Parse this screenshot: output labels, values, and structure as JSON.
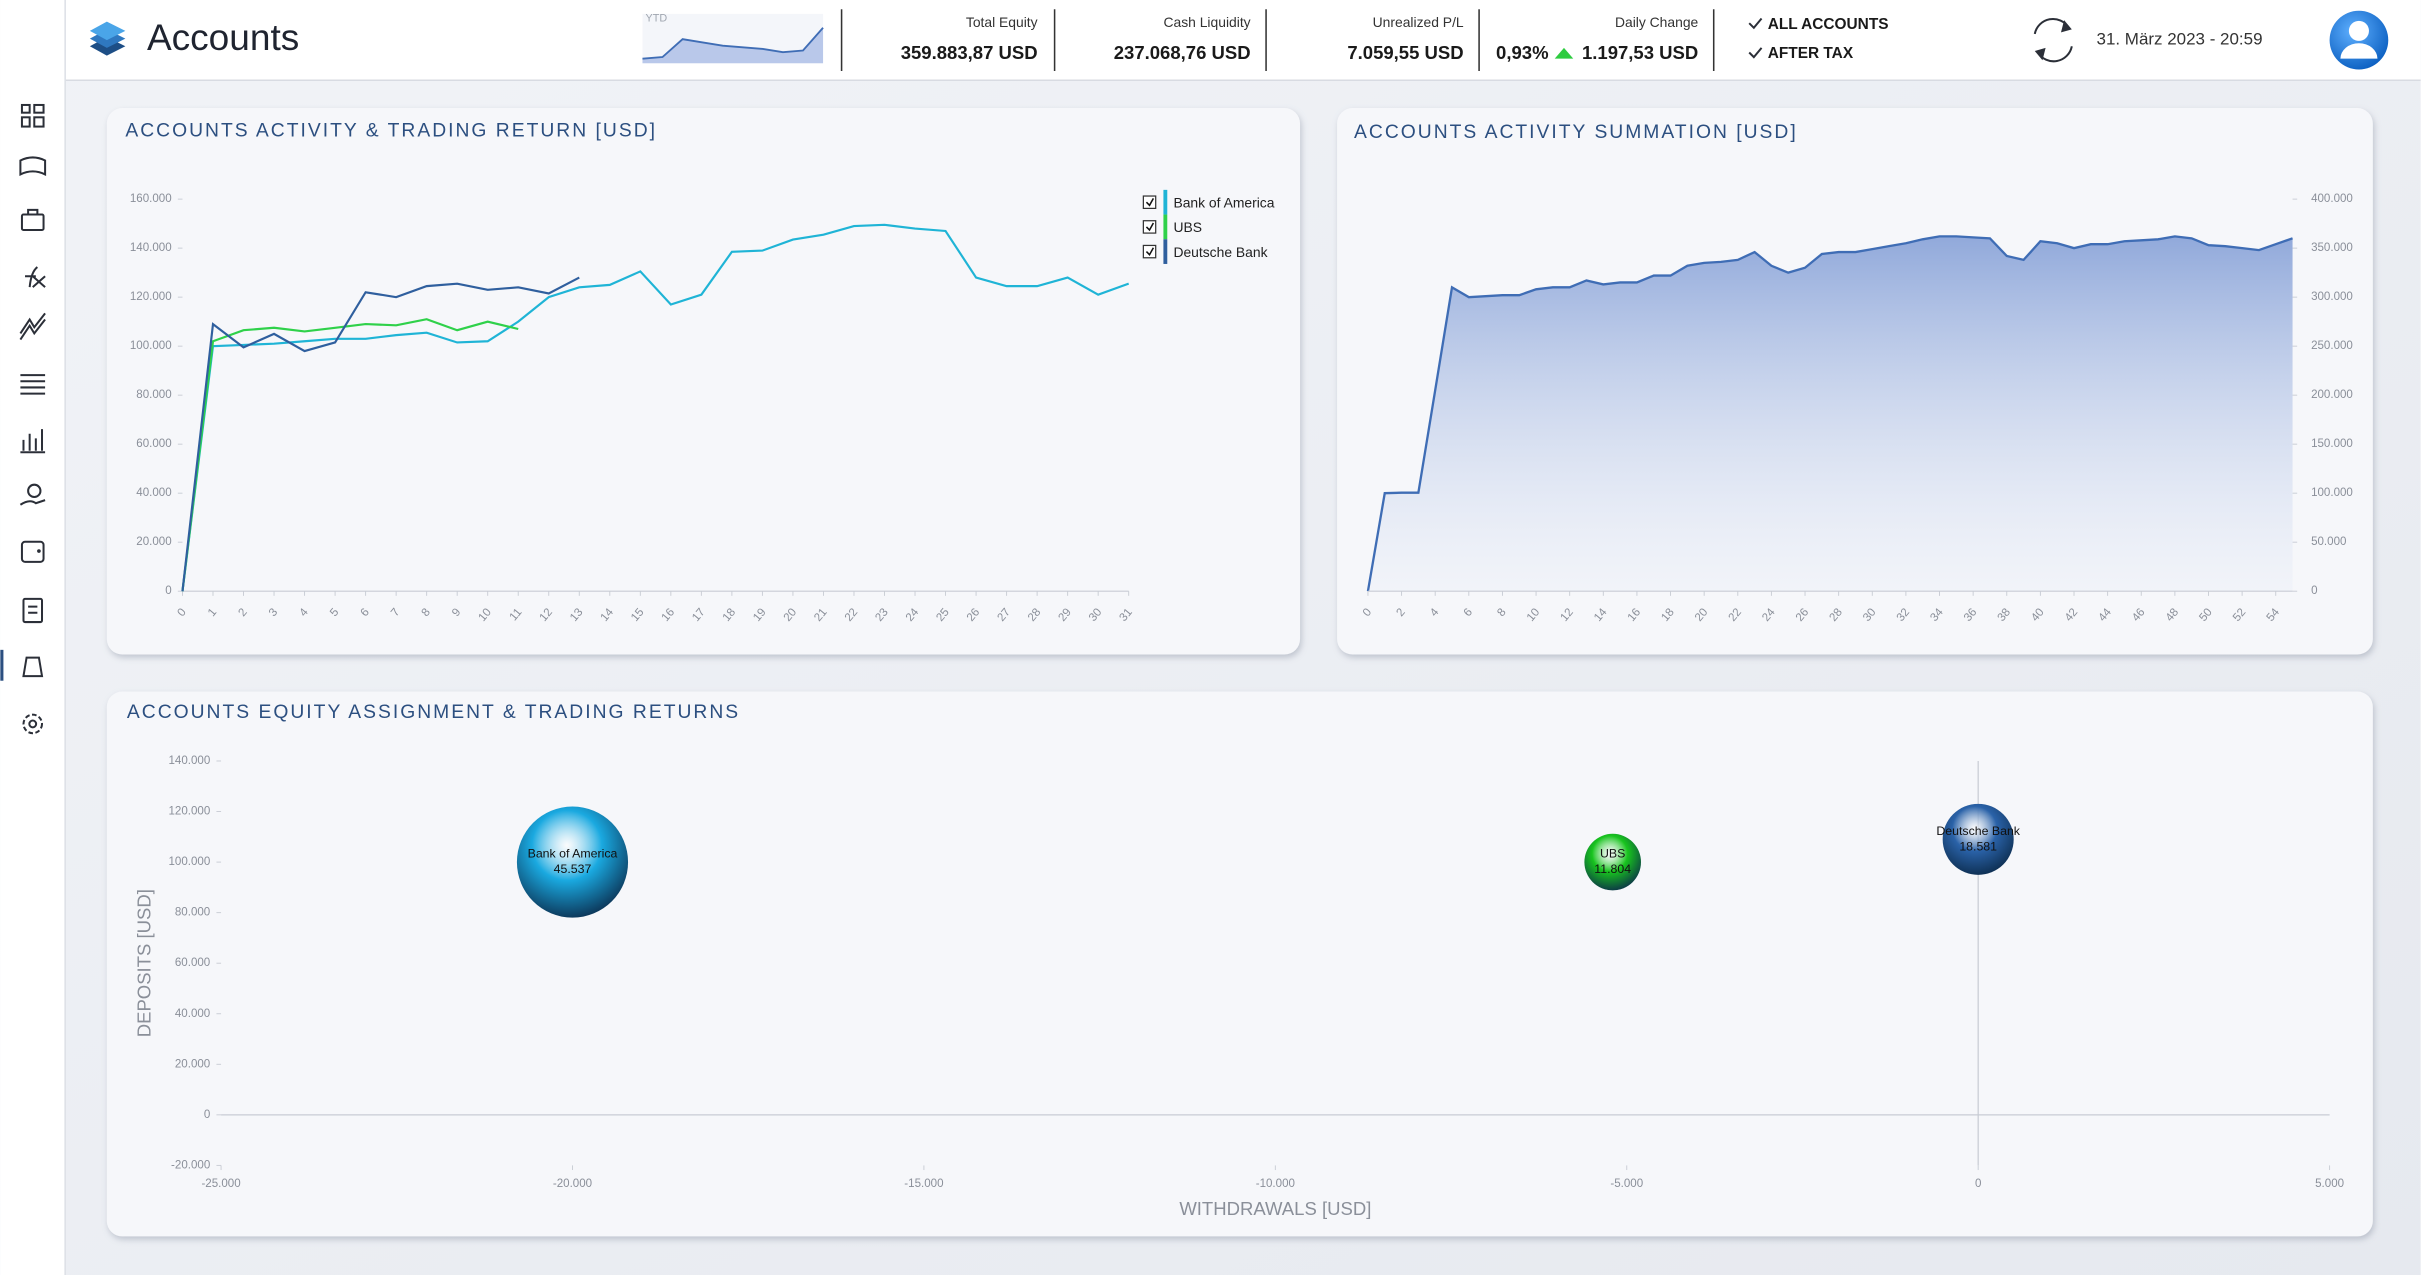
{
  "header": {
    "title": "Accounts",
    "ytd": {
      "label": "YTD",
      "values": [
        340000,
        341000,
        352000,
        350000,
        348000,
        347000,
        346000,
        344000,
        345000,
        359000
      ]
    },
    "stats": [
      {
        "label": "Total Equity",
        "value": "359.883,87 USD"
      },
      {
        "label": "Cash Liquidity",
        "value": "237.068,76 USD"
      },
      {
        "label": "Unrealized P/L",
        "value": "7.059,55 USD"
      }
    ],
    "daily_change": {
      "label": "Daily Change",
      "percent": "0,93%",
      "value": "1.197,53 USD"
    },
    "toggles": [
      "ALL ACCOUNTS",
      "AFTER TAX"
    ],
    "datetime": "31. März 2023  -  20:59"
  },
  "chart_data": [
    {
      "type": "line",
      "title": "ACCOUNTS ACTIVITY & TRADING RETURN [USD]",
      "x": [
        0,
        1,
        2,
        3,
        4,
        5,
        6,
        7,
        8,
        9,
        10,
        11,
        12,
        13,
        14,
        15,
        16,
        17,
        18,
        19,
        20,
        21,
        22,
        23,
        24,
        25,
        26,
        27,
        28,
        29,
        30,
        31
      ],
      "series": [
        {
          "name": "Bank of America",
          "color": "#1fb4d6",
          "values": [
            0,
            100000,
            100500,
            101000,
            102000,
            103000,
            103000,
            104500,
            105500,
            101500,
            102000,
            110000,
            120000,
            124000,
            125000,
            130500,
            117000,
            121000,
            138500,
            139000,
            143500,
            145500,
            149000,
            149500,
            148000,
            147000,
            128000,
            124500,
            124500,
            128000,
            121000,
            125500
          ]
        },
        {
          "name": "UBS",
          "color": "#2fd14a",
          "values": [
            0,
            102000,
            106500,
            107500,
            106000,
            107500,
            109000,
            108500,
            111000,
            106500,
            110000,
            107000,
            null,
            null,
            null,
            null,
            null,
            null,
            null,
            null,
            null,
            null,
            null,
            null,
            null,
            null,
            null,
            null,
            null,
            null,
            null,
            null
          ]
        },
        {
          "name": "Deutsche Bank",
          "color": "#2f5f9e",
          "values": [
            0,
            109000,
            99500,
            105000,
            98000,
            101500,
            122000,
            120000,
            124500,
            125500,
            123000,
            124000,
            121500,
            128000,
            null,
            null,
            null,
            null,
            null,
            null,
            null,
            null,
            null,
            null,
            null,
            null,
            null,
            null,
            null,
            null,
            null,
            null
          ]
        }
      ],
      "xlim": [
        0,
        31
      ],
      "xticks": [
        0,
        1,
        2,
        3,
        4,
        5,
        6,
        7,
        8,
        9,
        10,
        11,
        12,
        13,
        14,
        15,
        16,
        17,
        18,
        19,
        20,
        21,
        22,
        23,
        24,
        25,
        26,
        27,
        28,
        29,
        30,
        31
      ],
      "ylim": [
        0,
        160000
      ],
      "yticks": [
        0,
        {
          "value": 20000,
          "label": "20.000"
        },
        {
          "value": 40000,
          "label": "40.000"
        },
        {
          "value": 60000,
          "label": "60.000"
        },
        {
          "value": 80000,
          "label": "80.000"
        },
        {
          "value": 100000,
          "label": "100.000"
        },
        {
          "value": 120000,
          "label": "120.000"
        },
        {
          "value": 140000,
          "label": "140.000"
        },
        {
          "value": 160000,
          "label": "160.000"
        }
      ],
      "legend": "top-right",
      "grid": false
    },
    {
      "type": "area",
      "title": "ACCOUNTS ACTIVITY SUMMATION [USD]",
      "color": "#3f6db5",
      "x": [
        0,
        1,
        2,
        3,
        4,
        5,
        6,
        7,
        8,
        9,
        10,
        11,
        12,
        13,
        14,
        15,
        16,
        17,
        18,
        19,
        20,
        21,
        22,
        23,
        24,
        25,
        26,
        27,
        28,
        29,
        30,
        31,
        32,
        33,
        34,
        35,
        36,
        37,
        38,
        39,
        40,
        41,
        42,
        43,
        44,
        45,
        46,
        47,
        48,
        49,
        50,
        51,
        52,
        53,
        54,
        55
      ],
      "values": [
        0,
        100000,
        100500,
        100500,
        205000,
        310000,
        300000,
        301000,
        302000,
        302000,
        308000,
        310000,
        310000,
        317000,
        313000,
        315000,
        315000,
        322000,
        322000,
        332000,
        335000,
        336000,
        338000,
        346000,
        332000,
        325000,
        330000,
        344000,
        346000,
        346000,
        349000,
        352000,
        355000,
        359000,
        362000,
        362000,
        361000,
        360000,
        342000,
        338000,
        357000,
        355000,
        350000,
        354000,
        354000,
        357000,
        358000,
        359000,
        362000,
        360000,
        353000,
        352000,
        350000,
        348000,
        354000,
        360000
      ],
      "xlim": [
        0,
        55
      ],
      "xticks": [
        0,
        2,
        4,
        6,
        8,
        10,
        12,
        14,
        16,
        18,
        20,
        22,
        24,
        26,
        28,
        30,
        32,
        34,
        36,
        38,
        40,
        42,
        44,
        46,
        48,
        50,
        52,
        54
      ],
      "ylim": [
        0,
        400000
      ],
      "yticks": [
        0,
        {
          "value": 50000,
          "label": "50.000"
        },
        {
          "value": 100000,
          "label": "100.000"
        },
        {
          "value": 150000,
          "label": "150.000"
        },
        {
          "value": 200000,
          "label": "200.000"
        },
        {
          "value": 250000,
          "label": "250.000"
        },
        {
          "value": 300000,
          "label": "300.000"
        },
        {
          "value": 350000,
          "label": "350.000"
        },
        {
          "value": 400000,
          "label": "400.000"
        }
      ],
      "y_axis_side": "right",
      "grid": false
    },
    {
      "type": "bubble",
      "title": "ACCOUNTS EQUITY ASSIGNMENT & TRADING RETURNS",
      "xlabel": "WITHDRAWALS  [USD]",
      "ylabel": "DEPOSITS  [USD]",
      "series": [
        {
          "name": "Bank of America",
          "color": "#1aa9e0",
          "x": -20000,
          "y": 100000,
          "size": 45537,
          "size_label": "45.537"
        },
        {
          "name": "UBS",
          "color": "#18c41e",
          "x": -5200,
          "y": 100000,
          "size": 11804,
          "size_label": "11.804"
        },
        {
          "name": "Deutsche Bank",
          "color": "#2a62a8",
          "x": 0,
          "y": 109000,
          "size": 18581,
          "size_label": "18.581"
        }
      ],
      "xlim": [
        -25000,
        5000
      ],
      "xticks": [
        {
          "value": -25000,
          "label": "-25.000"
        },
        {
          "value": -20000,
          "label": "-20.000"
        },
        {
          "value": -15000,
          "label": "-15.000"
        },
        {
          "value": -10000,
          "label": "-10.000"
        },
        {
          "value": -5000,
          "label": "-5.000"
        },
        0,
        {
          "value": 5000,
          "label": "5.000"
        }
      ],
      "ylim": [
        -20000,
        140000
      ],
      "yticks": [
        {
          "value": -20000,
          "label": "-20.000"
        },
        0,
        {
          "value": 20000,
          "label": "20.000"
        },
        {
          "value": 40000,
          "label": "40.000"
        },
        {
          "value": 60000,
          "label": "60.000"
        },
        {
          "value": 80000,
          "label": "80.000"
        },
        {
          "value": 100000,
          "label": "100.000"
        },
        {
          "value": 120000,
          "label": "120.000"
        },
        {
          "value": 140000,
          "label": "140.000"
        }
      ]
    }
  ]
}
